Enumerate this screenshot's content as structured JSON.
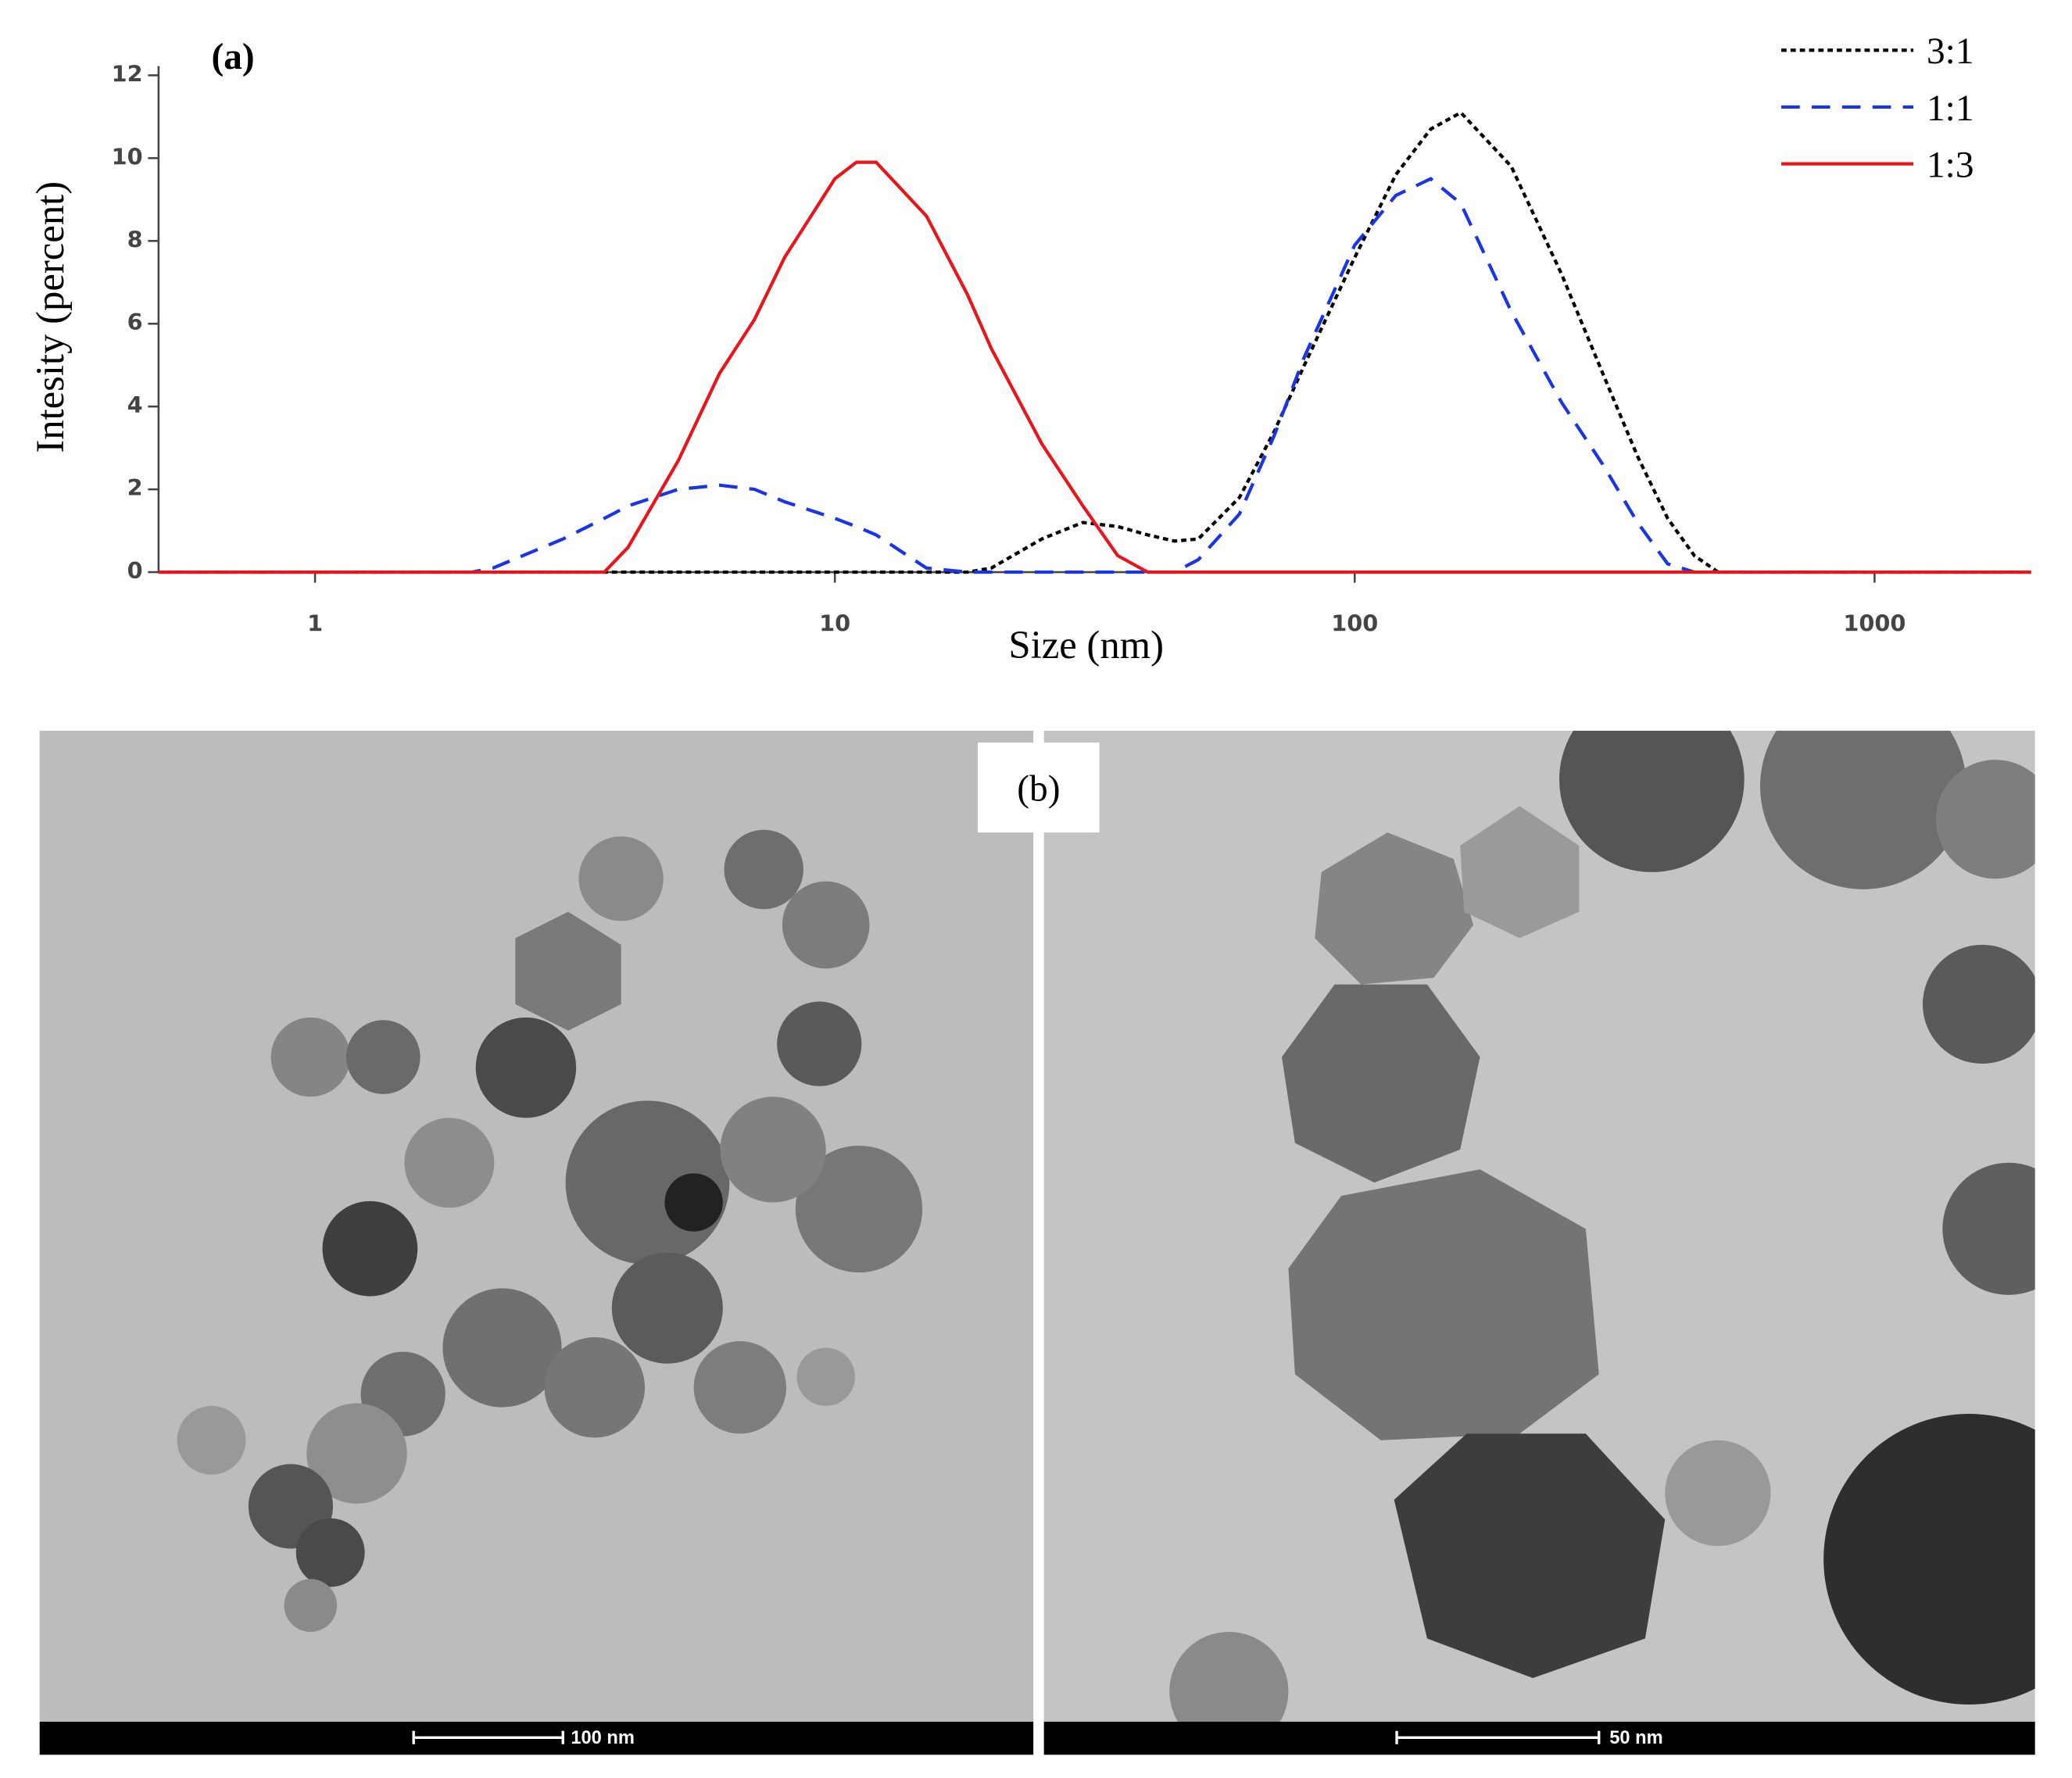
{
  "chart_data": {
    "type": "line",
    "annotation": "(a)",
    "xlabel": "Size (nm)",
    "ylabel": "Intesity (percent)",
    "x_scale": "log",
    "legend": "top-right",
    "xlim": [
      0.5,
      2000
    ],
    "xticks": [
      1,
      10,
      100,
      1000
    ],
    "ylim": [
      0,
      12
    ],
    "yticks": [
      0,
      2,
      4,
      6,
      8,
      10,
      12
    ],
    "x": [
      0.5,
      1,
      2,
      2.2,
      3,
      3.6,
      4,
      5,
      6,
      7,
      8,
      10,
      11,
      12,
      15,
      18,
      20,
      25,
      30,
      35,
      40,
      45,
      50,
      60,
      70,
      80,
      100,
      120,
      140,
      160,
      200,
      250,
      300,
      350,
      400,
      450,
      500,
      1000,
      2000
    ],
    "series": [
      {
        "name": "3:1",
        "color": "#000000",
        "dash": "4,3",
        "values": [
          0,
          0,
          0,
          0,
          0,
          0,
          0,
          0,
          0,
          0,
          0,
          0,
          0,
          0,
          0,
          0,
          0.1,
          0.8,
          1.2,
          1.1,
          0.9,
          0.75,
          0.8,
          1.8,
          3.4,
          5.0,
          7.6,
          9.6,
          10.7,
          11.1,
          9.8,
          7.2,
          4.8,
          2.8,
          1.3,
          0.4,
          0,
          0,
          0
        ]
      },
      {
        "name": "1:1",
        "color": "#1a35e6",
        "dash": "14,9",
        "values": [
          0,
          0,
          0,
          0.1,
          0.8,
          1.3,
          1.6,
          2.0,
          2.1,
          2.0,
          1.7,
          1.3,
          1.1,
          0.9,
          0.1,
          0,
          0,
          0,
          0,
          0,
          0,
          0,
          0.3,
          1.4,
          3.3,
          5.2,
          7.9,
          9.1,
          9.5,
          8.9,
          6.3,
          4.1,
          2.6,
          1.2,
          0.2,
          0,
          0,
          0,
          0
        ]
      },
      {
        "name": "1:3",
        "color": "#e8161b",
        "dash": "none",
        "values": [
          0,
          0,
          0,
          0,
          0,
          0,
          0.6,
          2.7,
          4.8,
          6.1,
          7.6,
          9.5,
          9.9,
          9.9,
          8.6,
          6.7,
          5.4,
          3.1,
          1.6,
          0.4,
          0,
          0,
          0,
          0,
          0,
          0,
          0,
          0,
          0,
          0,
          0,
          0,
          0,
          0,
          0,
          0,
          0,
          0,
          0
        ]
      }
    ]
  },
  "panel_b": {
    "label": "(b)",
    "scale_bars": [
      "100 nm",
      "50 nm"
    ]
  }
}
